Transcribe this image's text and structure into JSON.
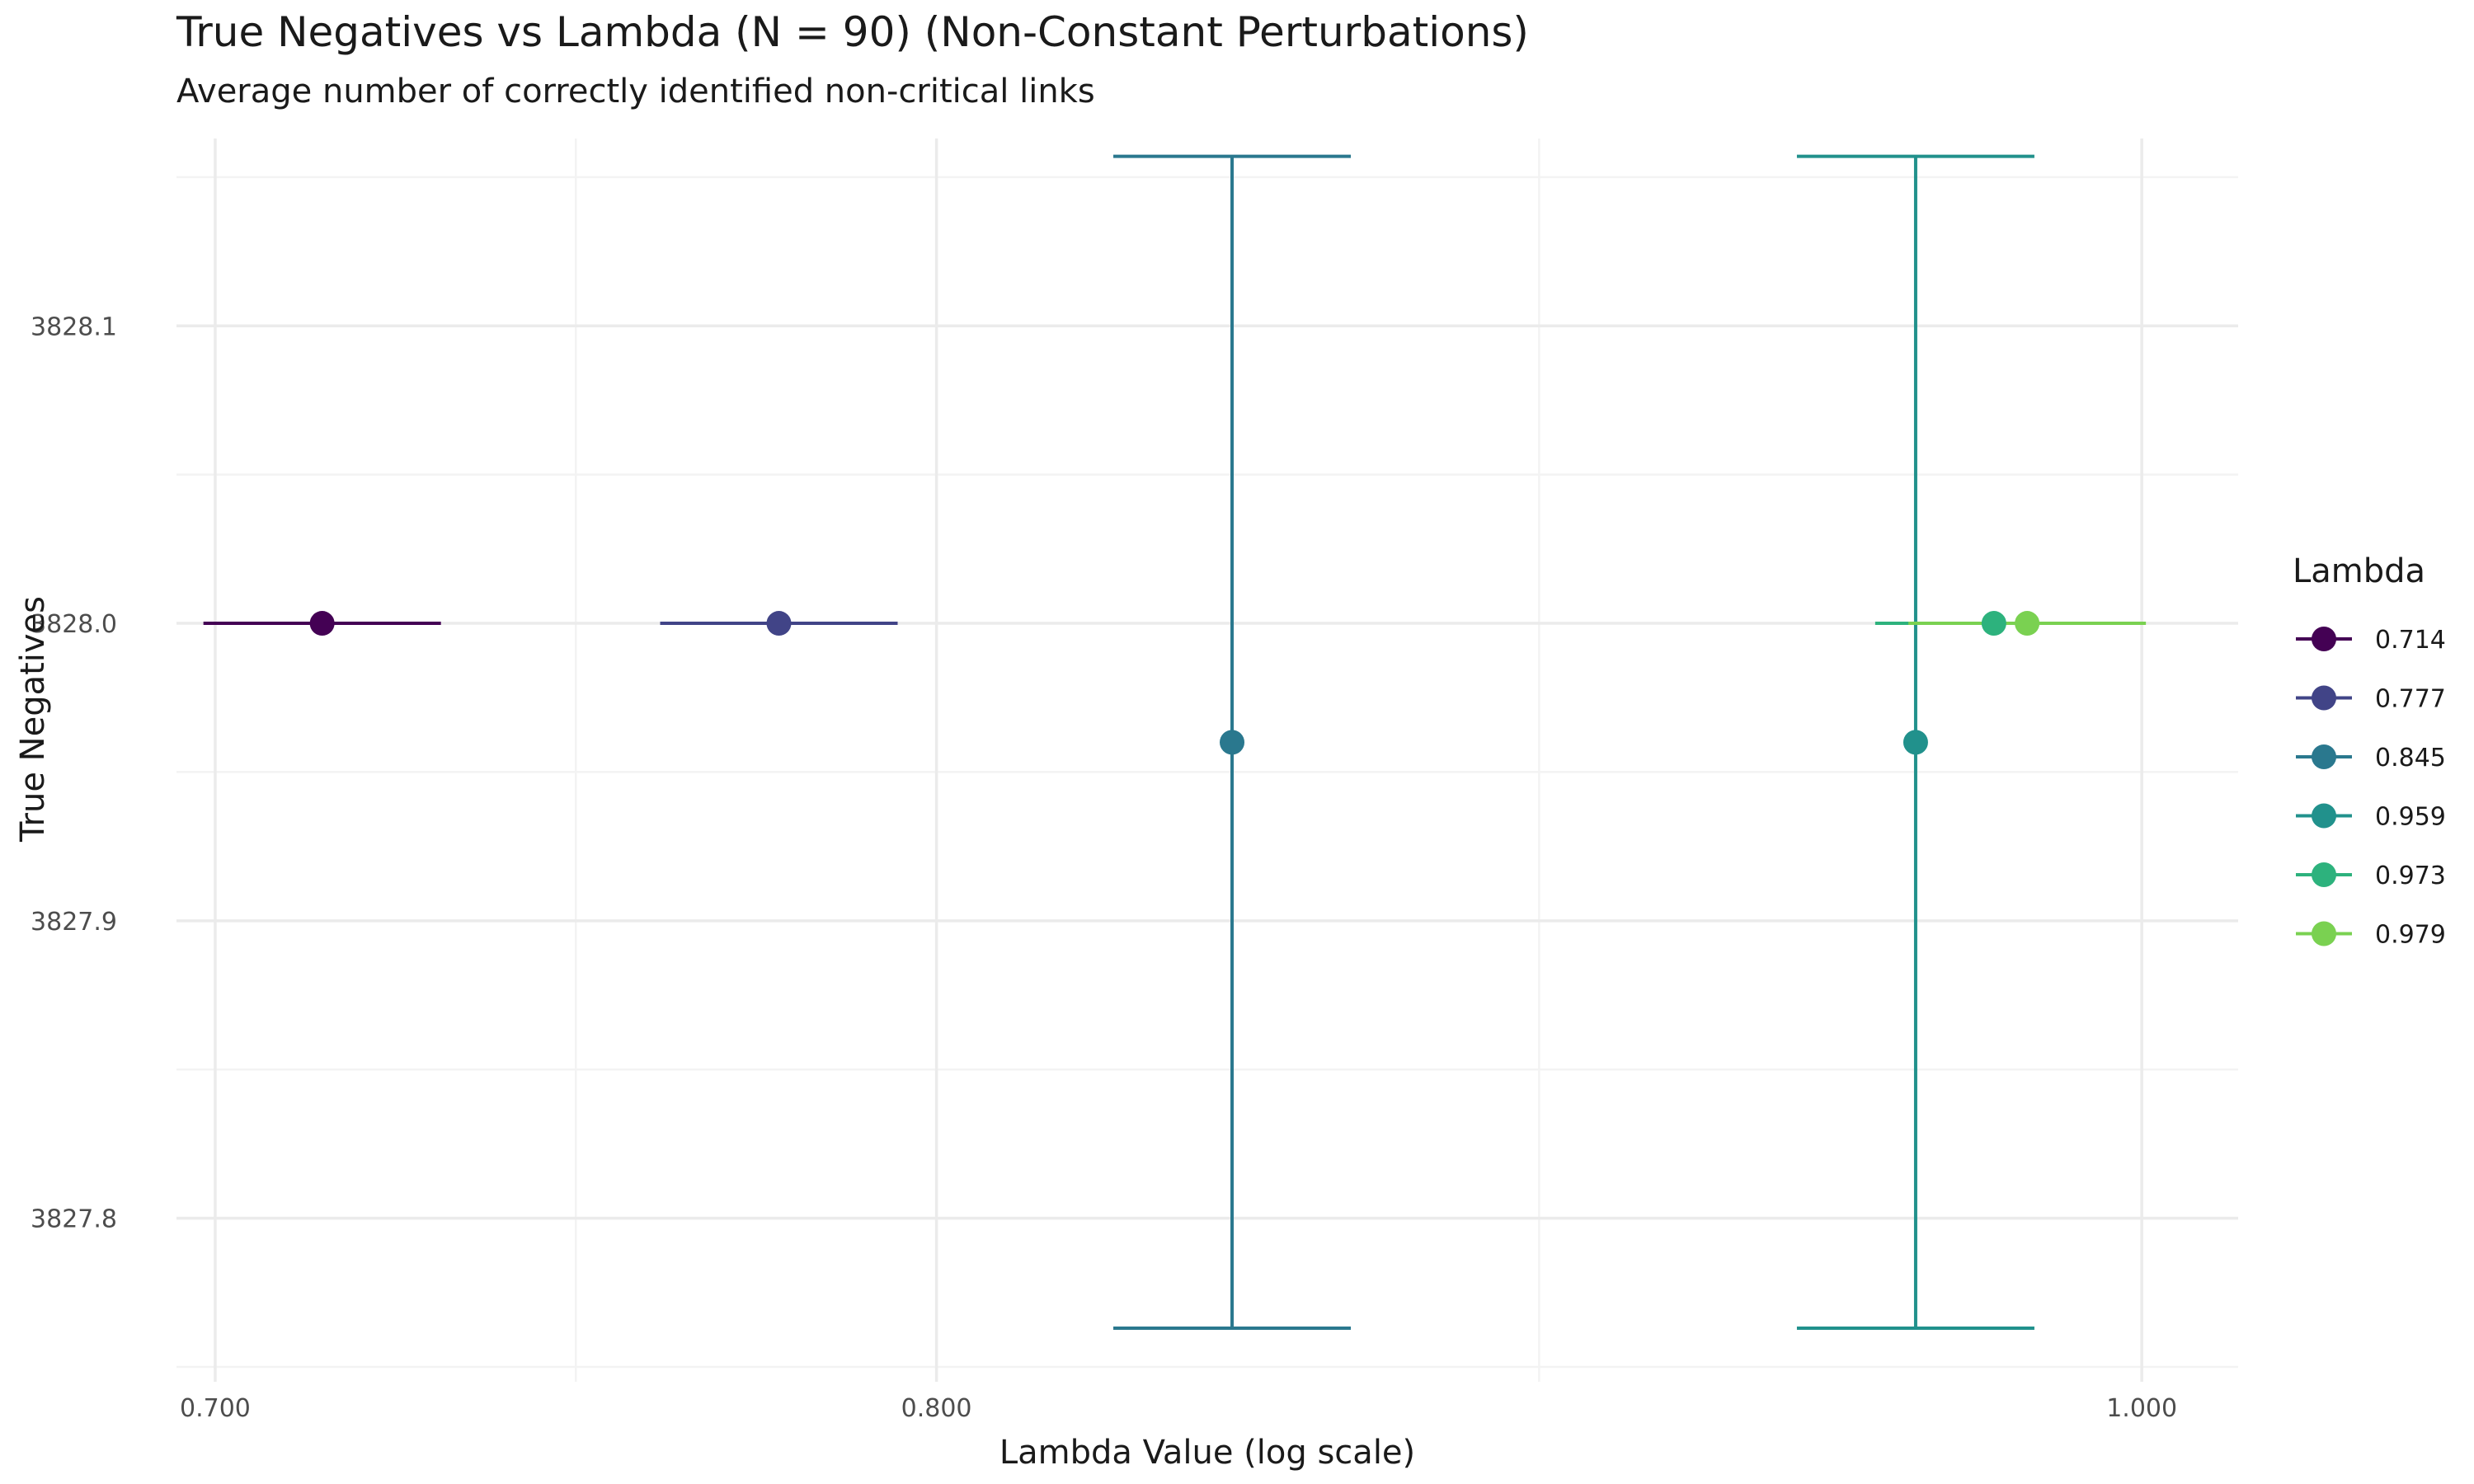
{
  "chart_data": {
    "type": "scatter",
    "title": "True Negatives vs Lambda (N = 90) (Non-Constant Perturbations)",
    "subtitle": "Average number of correctly identified non-critical links",
    "xlabel": "Lambda Value (log scale)",
    "ylabel": "True Negatives",
    "x_scale": "log",
    "xlim": [
      0.695,
      1.018
    ],
    "ylim": [
      3827.745,
      3828.163
    ],
    "x_ticks": [
      0.7,
      0.8,
      1.0
    ],
    "x_tick_labels": [
      "0.700",
      "0.800",
      "1.000"
    ],
    "y_ticks": [
      3827.8,
      3827.9,
      3828.0,
      3828.1
    ],
    "y_tick_labels": [
      "3827.8",
      "3827.9",
      "3828.0",
      "3828.1"
    ],
    "grid": true,
    "legend": {
      "title": "Lambda",
      "position": "right"
    },
    "series": [
      {
        "name": "0.714",
        "x": 0.714,
        "y": 3828.0,
        "ymin": 3828.0,
        "ymax": 3828.0,
        "color": "#440154"
      },
      {
        "name": "0.777",
        "x": 0.777,
        "y": 3828.0,
        "ymin": 3828.0,
        "ymax": 3828.0,
        "color": "#414487"
      },
      {
        "name": "0.845",
        "x": 0.845,
        "y": 3827.96,
        "ymin": 3827.763,
        "ymax": 3828.157,
        "color": "#2A788E"
      },
      {
        "name": "0.959",
        "x": 0.959,
        "y": 3827.96,
        "ymin": 3827.763,
        "ymax": 3828.157,
        "color": "#21918C"
      },
      {
        "name": "0.973",
        "x": 0.973,
        "y": 3828.0,
        "ymin": 3828.0,
        "ymax": 3828.0,
        "color": "#2DB27D"
      },
      {
        "name": "0.979",
        "x": 0.979,
        "y": 3828.0,
        "ymin": 3828.0,
        "ymax": 3828.0,
        "color": "#7AD151"
      }
    ]
  }
}
